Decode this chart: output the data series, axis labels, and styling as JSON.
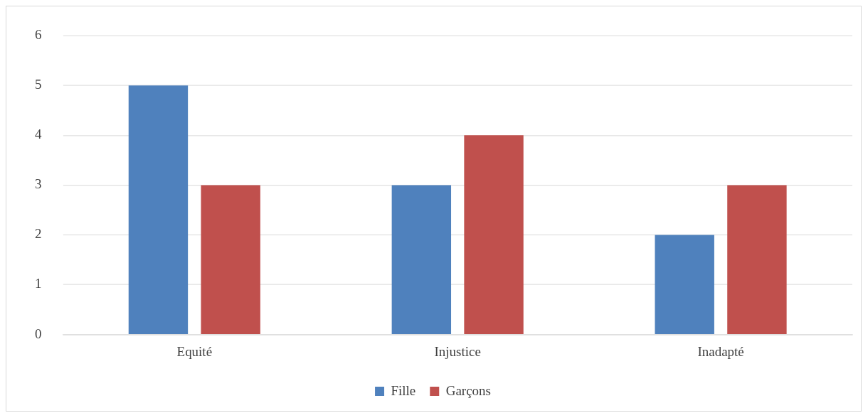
{
  "chart_data": {
    "type": "bar",
    "categories": [
      "Equité",
      "Injustice",
      "Inadapté"
    ],
    "series": [
      {
        "name": "Fille",
        "color": "#4f81bd",
        "values": [
          5,
          3,
          2
        ]
      },
      {
        "name": "Garçons",
        "color": "#c0504d",
        "values": [
          3,
          4,
          3
        ]
      }
    ],
    "ylim": [
      0,
      6
    ],
    "yticks": [
      0,
      1,
      2,
      3,
      4,
      5,
      6
    ],
    "grid": "y",
    "legend": "bottom"
  }
}
